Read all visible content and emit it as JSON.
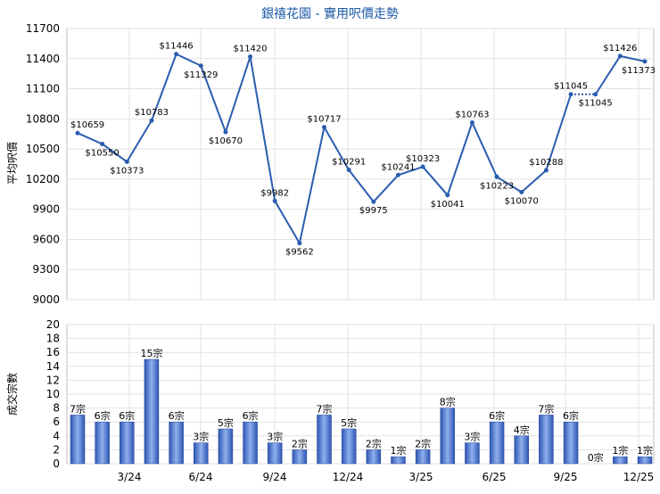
{
  "chart_data": [
    {
      "type": "line",
      "title": "銀禧花園 - 實用呎價走勢",
      "ylabel": "平均呎價",
      "ylim": [
        9000,
        11700
      ],
      "yticks": [
        9000,
        9300,
        9600,
        9900,
        10200,
        10500,
        10800,
        11100,
        11400,
        11700
      ],
      "x_ticks": [
        "3/24",
        "6/24",
        "9/24",
        "12/24",
        "3/25",
        "6/25",
        "9/25",
        "12/25"
      ],
      "values": [
        10659,
        10550,
        10373,
        10783,
        11446,
        11329,
        10670,
        11420,
        9982,
        9562,
        10717,
        10291,
        9975,
        10241,
        10323,
        10041,
        10763,
        10223,
        10070,
        10288,
        11045,
        11045,
        11426,
        11373
      ],
      "labels": [
        "$10659",
        "$10550",
        "$10373",
        "$10783",
        "$11446",
        "$11329",
        "$10670",
        "$11420",
        "$9982",
        "$9562",
        "$10717",
        "$10291",
        "$9975",
        "$10241",
        "$10323",
        "$10041",
        "$10763",
        "$10223",
        "$10070",
        "$10288",
        "$11045",
        "$11045",
        "$11426",
        "$11373"
      ],
      "dotted_segments": [
        [
          20,
          21
        ]
      ],
      "color": "#2a5db0",
      "grid": true
    },
    {
      "type": "bar",
      "ylabel": "成交宗數",
      "ylim": [
        0,
        20
      ],
      "yticks": [
        0,
        2,
        4,
        6,
        8,
        10,
        12,
        14,
        16,
        18,
        20
      ],
      "x_ticks": [
        "3/24",
        "6/24",
        "9/24",
        "12/24",
        "3/25",
        "6/25",
        "9/25",
        "12/25"
      ],
      "values": [
        7,
        6,
        6,
        15,
        6,
        3,
        5,
        6,
        3,
        2,
        7,
        5,
        2,
        1,
        2,
        8,
        3,
        6,
        4,
        7,
        6,
        0,
        1,
        1
      ],
      "labels": [
        "7宗",
        "6宗",
        "6宗",
        "15宗",
        "6宗",
        "3宗",
        "5宗",
        "6宗",
        "3宗",
        "2宗",
        "7宗",
        "5宗",
        "2宗",
        "1宗",
        "2宗",
        "8宗",
        "3宗",
        "6宗",
        "4宗",
        "7宗",
        "6宗",
        "0宗",
        "1宗",
        "1宗"
      ],
      "color": "#3a66c4",
      "grid": true
    }
  ]
}
